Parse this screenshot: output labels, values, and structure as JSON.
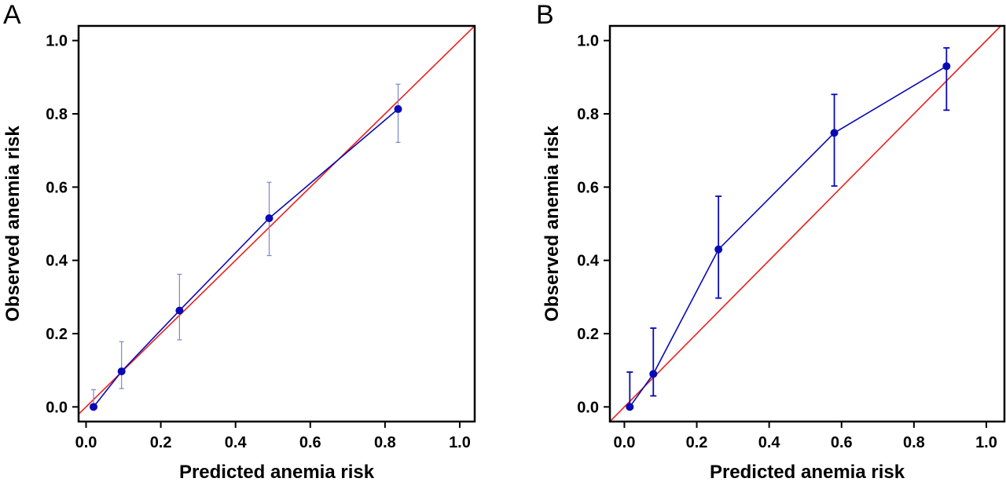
{
  "colors": {
    "diagonal": "#e8211f",
    "series": "#0a0ab4",
    "errorbar_a": "#7b86cc",
    "frame": "#000000"
  },
  "chart_data": [
    {
      "panel": "A",
      "type": "line",
      "xlabel": "Predicted anemia risk",
      "ylabel": "Observed anemia risk",
      "xlim": [
        -0.02,
        1.04
      ],
      "ylim": [
        -0.04,
        1.04
      ],
      "xticks": [
        "0.0",
        "0.2",
        "0.4",
        "0.6",
        "0.8",
        "1.0"
      ],
      "yticks": [
        "0.0",
        "0.2",
        "0.4",
        "0.6",
        "0.8",
        "1.0"
      ],
      "reference_line": "y = x",
      "series": [
        {
          "x": [
            0.02,
            0.095,
            0.25,
            0.49,
            0.835
          ],
          "y": [
            0.0,
            0.097,
            0.263,
            0.515,
            0.813
          ],
          "ci_low": [
            0.0,
            0.05,
            0.183,
            0.413,
            0.722
          ],
          "ci_high": [
            0.047,
            0.178,
            0.362,
            0.613,
            0.881
          ]
        }
      ],
      "grid": false
    },
    {
      "panel": "B",
      "type": "line",
      "xlabel": "Predicted anemia risk",
      "ylabel": "Observed anemia risk",
      "xlim": [
        -0.04,
        1.05
      ],
      "ylim": [
        -0.04,
        1.04
      ],
      "xticks": [
        "0.0",
        "0.2",
        "0.4",
        "0.6",
        "0.8",
        "1.0"
      ],
      "yticks": [
        "0.0",
        "0.2",
        "0.4",
        "0.6",
        "0.8",
        "1.0"
      ],
      "reference_line": "y = x",
      "series": [
        {
          "x": [
            0.015,
            0.08,
            0.26,
            0.58,
            0.89
          ],
          "y": [
            0.0,
            0.09,
            0.43,
            0.748,
            0.93
          ],
          "ci_low": [
            0.0,
            0.03,
            0.297,
            0.603,
            0.81
          ],
          "ci_high": [
            0.095,
            0.215,
            0.575,
            0.853,
            0.98
          ]
        }
      ],
      "grid": false
    }
  ]
}
